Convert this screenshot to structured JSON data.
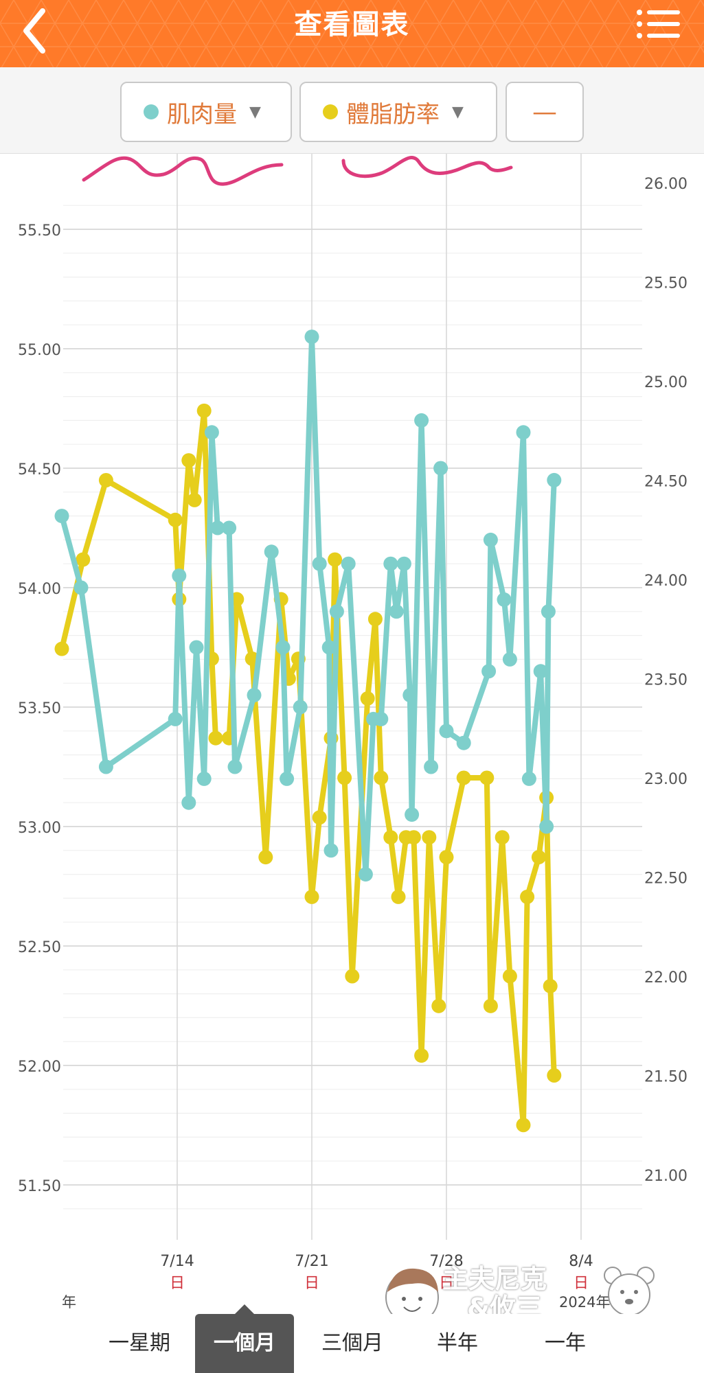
{
  "header": {
    "title": "查看圖表",
    "accent_color": "#ff7a29",
    "back_icon": "chevron-left-icon",
    "menu_icon": "list-menu-icon"
  },
  "selectors": {
    "primary": {
      "label": "肌肉量",
      "color": "#7ecfcb",
      "dropdown_icon": "triangle-down-icon"
    },
    "secondary": {
      "label": "體脂肪率",
      "color": "#e6ce1c",
      "dropdown_icon": "triangle-down-icon"
    },
    "third": {
      "label": "—"
    }
  },
  "chart_data": {
    "type": "line",
    "left_axis": {
      "ticks": [
        "55.50",
        "55.00",
        "54.50",
        "54.00",
        "53.50",
        "53.00",
        "52.50",
        "52.00",
        "51.50"
      ],
      "values": [
        55.5,
        55.0,
        54.5,
        54.0,
        53.5,
        53.0,
        52.5,
        52.0,
        51.5
      ]
    },
    "right_axis": {
      "ticks": [
        "26.00",
        "25.50",
        "25.00",
        "24.50",
        "24.00",
        "23.50",
        "23.00",
        "22.50",
        "22.00",
        "21.50",
        "21.00"
      ],
      "values": [
        26.0,
        25.5,
        25.0,
        24.5,
        24.0,
        23.5,
        23.0,
        22.5,
        22.0,
        21.5,
        21.0
      ]
    },
    "x_ticks": [
      {
        "date": "7/14",
        "day": "日"
      },
      {
        "date": "7/21",
        "day": "日"
      },
      {
        "date": "7/28",
        "day": "日"
      },
      {
        "date": "8/4",
        "day": "日"
      }
    ],
    "year_label_left": "年",
    "year_label_right": "2024年",
    "series": [
      {
        "name": "肌肉量",
        "color": "#7ecfcb",
        "axis": "left",
        "points": [
          [
            0.0,
            54.3
          ],
          [
            1.0,
            54.0
          ],
          [
            2.3,
            53.25
          ],
          [
            5.9,
            53.45
          ],
          [
            6.1,
            54.05
          ],
          [
            6.6,
            53.1
          ],
          [
            7.0,
            53.75
          ],
          [
            7.4,
            53.2
          ],
          [
            7.8,
            54.65
          ],
          [
            8.1,
            54.25
          ],
          [
            8.7,
            54.25
          ],
          [
            9.0,
            53.25
          ],
          [
            10.0,
            53.55
          ],
          [
            10.9,
            54.15
          ],
          [
            11.5,
            53.75
          ],
          [
            11.7,
            53.2
          ],
          [
            12.4,
            53.5
          ],
          [
            13.0,
            55.05
          ],
          [
            13.4,
            54.1
          ],
          [
            13.9,
            53.75
          ],
          [
            14.0,
            52.9
          ],
          [
            14.3,
            53.9
          ],
          [
            14.9,
            54.1
          ],
          [
            15.8,
            52.8
          ],
          [
            16.2,
            53.45
          ],
          [
            16.6,
            53.45
          ],
          [
            17.1,
            54.1
          ],
          [
            17.4,
            53.9
          ],
          [
            17.8,
            54.1
          ],
          [
            18.1,
            53.55
          ],
          [
            18.2,
            53.05
          ],
          [
            18.7,
            54.7
          ],
          [
            19.2,
            53.25
          ],
          [
            19.7,
            54.5
          ],
          [
            20.0,
            53.4
          ],
          [
            20.9,
            53.35
          ],
          [
            22.2,
            53.65
          ],
          [
            22.3,
            54.2
          ],
          [
            23.0,
            53.95
          ],
          [
            23.3,
            53.7
          ],
          [
            24.0,
            54.65
          ],
          [
            24.3,
            53.2
          ],
          [
            24.9,
            53.65
          ],
          [
            25.2,
            53.0
          ],
          [
            25.3,
            53.9
          ],
          [
            25.6,
            54.45
          ]
        ]
      },
      {
        "name": "體脂肪率",
        "color": "#e6ce1c",
        "axis": "right",
        "points": [
          [
            0.0,
            23.65
          ],
          [
            1.1,
            24.1
          ],
          [
            2.3,
            24.5
          ],
          [
            5.9,
            24.3
          ],
          [
            6.1,
            23.9
          ],
          [
            6.6,
            24.6
          ],
          [
            6.9,
            24.4
          ],
          [
            7.4,
            24.85
          ],
          [
            7.8,
            23.6
          ],
          [
            8.0,
            23.2
          ],
          [
            8.7,
            23.2
          ],
          [
            9.1,
            23.9
          ],
          [
            9.9,
            23.6
          ],
          [
            10.6,
            22.6
          ],
          [
            11.4,
            23.9
          ],
          [
            11.8,
            23.5
          ],
          [
            12.3,
            23.6
          ],
          [
            13.0,
            22.4
          ],
          [
            13.4,
            22.8
          ],
          [
            14.0,
            23.2
          ],
          [
            14.2,
            24.1
          ],
          [
            14.7,
            23.0
          ],
          [
            15.1,
            22.0
          ],
          [
            15.9,
            23.4
          ],
          [
            16.3,
            23.8
          ],
          [
            16.6,
            23.0
          ],
          [
            17.1,
            22.7
          ],
          [
            17.5,
            22.4
          ],
          [
            17.9,
            22.7
          ],
          [
            18.3,
            22.7
          ],
          [
            18.7,
            21.6
          ],
          [
            19.1,
            22.7
          ],
          [
            19.6,
            21.85
          ],
          [
            20.0,
            22.6
          ],
          [
            20.9,
            23.0
          ],
          [
            22.1,
            23.0
          ],
          [
            22.3,
            21.85
          ],
          [
            22.9,
            22.7
          ],
          [
            23.3,
            22.0
          ],
          [
            24.0,
            21.25
          ],
          [
            24.2,
            22.4
          ],
          [
            24.8,
            22.6
          ],
          [
            25.2,
            22.9
          ],
          [
            25.4,
            21.95
          ],
          [
            25.6,
            21.5
          ]
        ]
      }
    ]
  },
  "tabs": [
    {
      "label": "一星期",
      "active": false
    },
    {
      "label": "一個月",
      "active": true
    },
    {
      "label": "三個月",
      "active": false
    },
    {
      "label": "半年",
      "active": false
    },
    {
      "label": "一年",
      "active": false
    }
  ],
  "watermark": {
    "line1": "主夫尼克",
    "line2": "&攸三"
  }
}
